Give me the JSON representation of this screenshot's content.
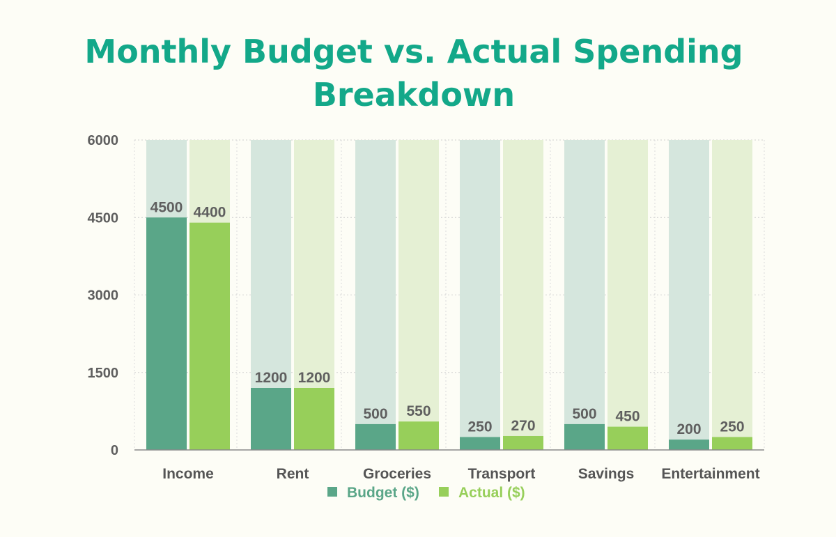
{
  "colors": {
    "title": "#13a889",
    "budget": "#5aa688",
    "actual": "#97cf5a",
    "budget_track": "#d5e6dd",
    "actual_track": "#e5f0d4",
    "text": "#5f5f5f",
    "background": "#fdfdf6"
  },
  "chart_data": {
    "type": "bar",
    "title_lines": [
      "Monthly Budget vs. Actual Spending",
      "Breakdown"
    ],
    "categories": [
      "Income",
      "Rent",
      "Groceries",
      "Transport",
      "Savings",
      "Entertainment"
    ],
    "series": [
      {
        "name": "Budget ($)",
        "values": [
          4500,
          1200,
          500,
          250,
          500,
          200
        ]
      },
      {
        "name": "Actual ($)",
        "values": [
          4400,
          1200,
          550,
          270,
          450,
          250
        ]
      }
    ],
    "ylim": [
      0,
      6000
    ],
    "yticks": [
      "0",
      "1500",
      "3000",
      "4500",
      "6000"
    ],
    "grid": true,
    "legend_position": "bottom"
  }
}
